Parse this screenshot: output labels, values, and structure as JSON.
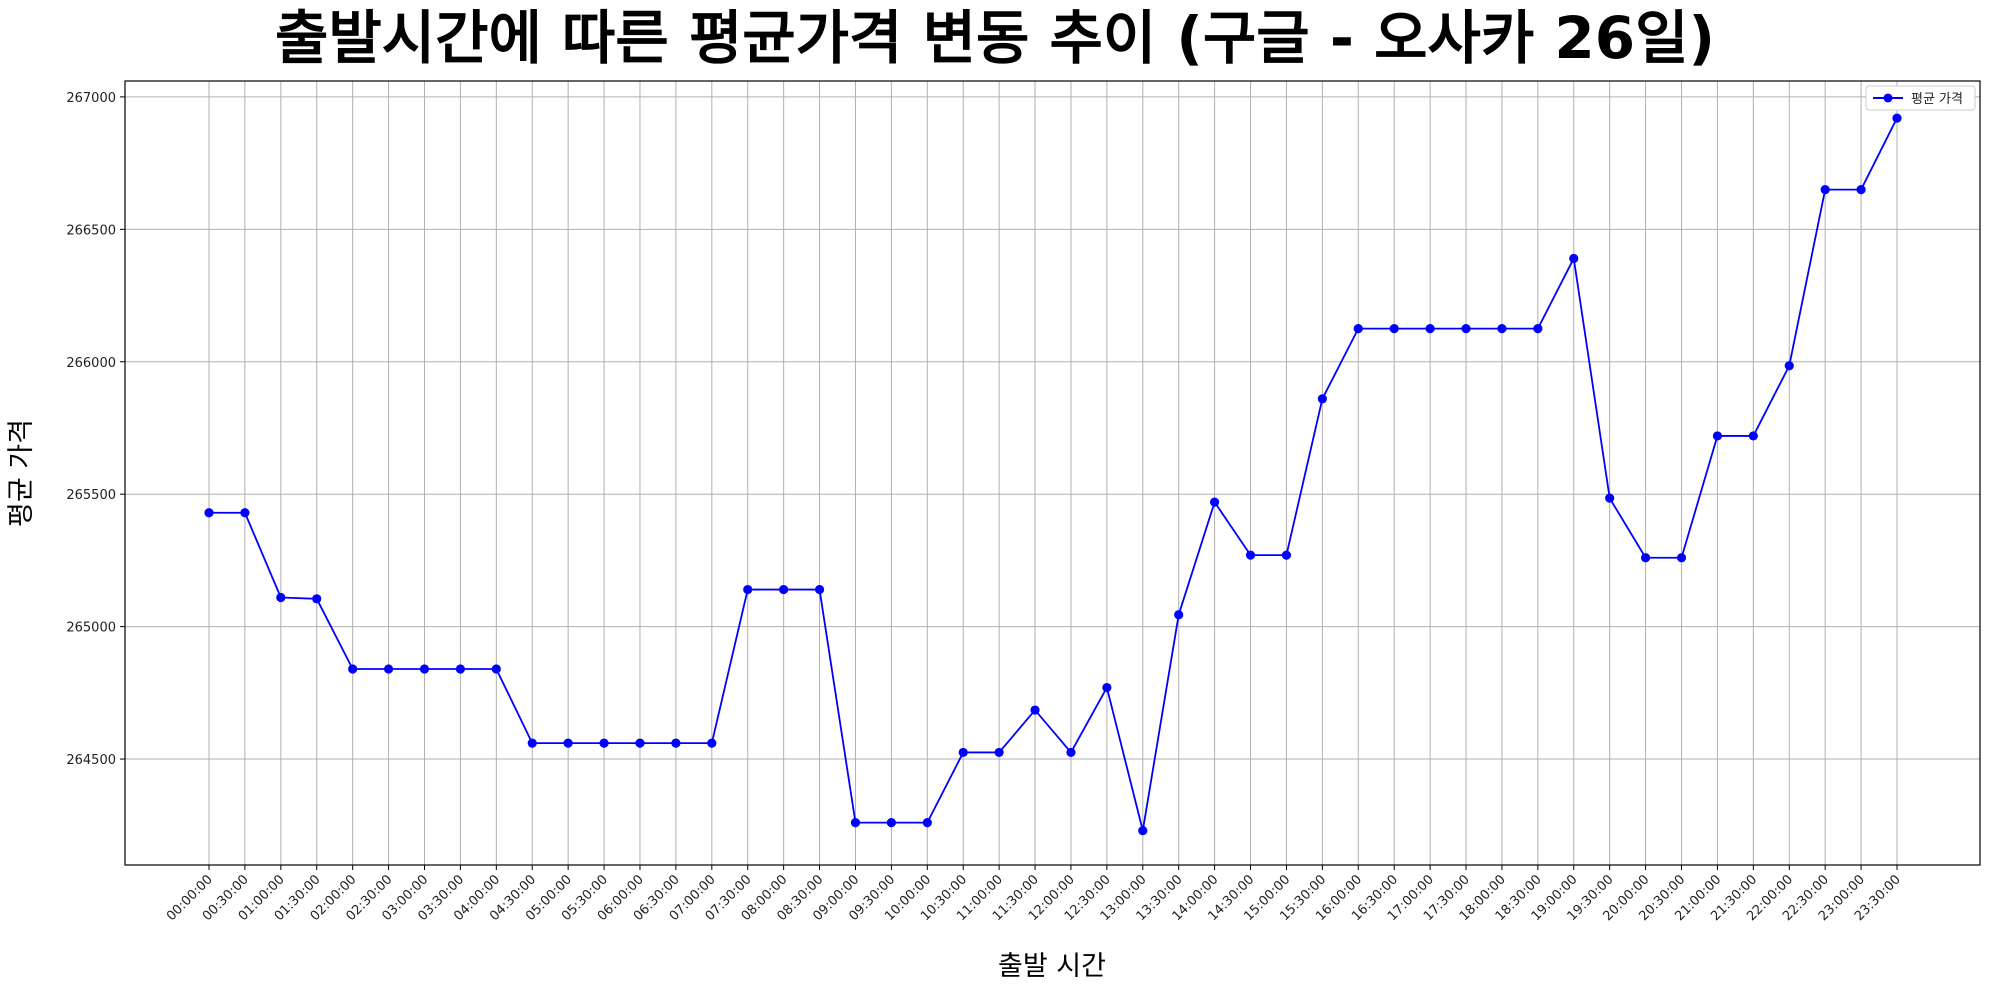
{
  "chart_data": {
    "type": "line",
    "title": "출발시간에 따른 평균가격 변동 추이 (구글 - 오사카 26일)",
    "xlabel": "출발 시간",
    "ylabel": "평균 가격",
    "x": [
      "00:00:00",
      "00:30:00",
      "01:00:00",
      "01:30:00",
      "02:00:00",
      "02:30:00",
      "03:00:00",
      "03:30:00",
      "04:00:00",
      "04:30:00",
      "05:00:00",
      "05:30:00",
      "06:00:00",
      "06:30:00",
      "07:00:00",
      "07:30:00",
      "08:00:00",
      "08:30:00",
      "09:00:00",
      "09:30:00",
      "10:00:00",
      "10:30:00",
      "11:00:00",
      "11:30:00",
      "12:00:00",
      "12:30:00",
      "13:00:00",
      "13:30:00",
      "14:00:00",
      "14:30:00",
      "15:00:00",
      "15:30:00",
      "16:00:00",
      "16:30:00",
      "17:00:00",
      "17:30:00",
      "18:00:00",
      "18:30:00",
      "19:00:00",
      "19:30:00",
      "20:00:00",
      "20:30:00",
      "21:00:00",
      "21:30:00",
      "22:00:00",
      "22:30:00",
      "23:00:00",
      "23:30:00"
    ],
    "series": [
      {
        "name": "평균 가격",
        "color": "#0000ff",
        "values": [
          265430,
          265430,
          265110,
          265105,
          264840,
          264840,
          264840,
          264840,
          264840,
          264560,
          264560,
          264560,
          264560,
          264560,
          264560,
          265140,
          265140,
          265140,
          264260,
          264260,
          264260,
          264525,
          264525,
          264685,
          264525,
          264770,
          264230,
          265045,
          265470,
          265270,
          265270,
          265860,
          266125,
          266125,
          266125,
          266125,
          266125,
          266125,
          266390,
          265485,
          265260,
          265260,
          265720,
          265720,
          265985,
          266650,
          266650,
          266920
        ]
      }
    ],
    "ylim": [
      264100,
      267060
    ],
    "yticks": [
      264500,
      265000,
      265500,
      266000,
      266500,
      267000
    ],
    "grid": true,
    "legend_position": "top-right"
  }
}
